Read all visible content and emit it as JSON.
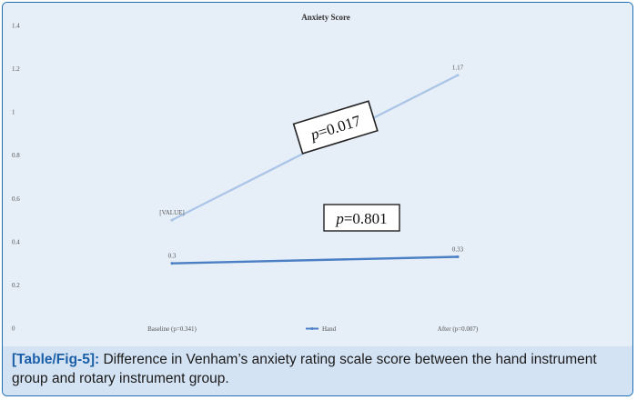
{
  "chart_data": {
    "type": "line",
    "title": "Anxiety Score",
    "categories": [
      "Baseline (p=0.341)",
      "After (p=0.007)"
    ],
    "ylim": [
      0,
      1.4
    ],
    "yticks": [
      "0",
      "0.2",
      "0.4",
      "0.6",
      "0.8",
      "1",
      "1.2",
      "1.4"
    ],
    "grid": false,
    "legend": "bottom",
    "series": [
      {
        "name": "",
        "values": [
          0.5,
          1.17
        ],
        "labels": [
          "[VALUE]",
          "1.17"
        ],
        "color": "#a9c4e6"
      },
      {
        "name": "Hand",
        "values": [
          0.3,
          0.33
        ],
        "labels": [
          "0.3",
          "0.33"
        ],
        "color": "#4a7fc4"
      }
    ],
    "annotations": [
      {
        "italic": "p",
        "text": "=0.017"
      },
      {
        "italic": "p",
        "text": "=0.801"
      }
    ]
  },
  "caption": {
    "tag": "[Table/Fig-5]:",
    "text": " Difference in Venham’s anxiety rating scale score between the hand instrument group and rotary instrument group."
  }
}
